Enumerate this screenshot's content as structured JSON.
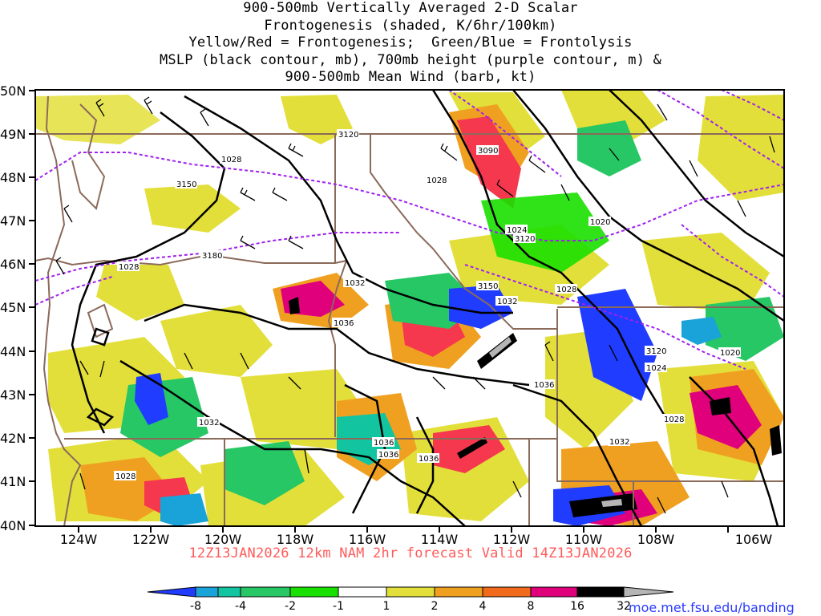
{
  "title": {
    "lines": [
      "900-500mb Vertically Averaged 2-D Scalar",
      "Frontogenesis (shaded, K/6hr/100km)",
      "Yellow/Red = Frontogenesis;  Green/Blue = Frontolysis",
      "MSLP (black contour, mb), 700mb height (purple contour, m) &",
      "900-500mb Mean Wind (barb, kt)"
    ]
  },
  "map": {
    "lat_labels": [
      "50N",
      "49N",
      "48N",
      "47N",
      "46N",
      "45N",
      "44N",
      "43N",
      "42N",
      "41N",
      "40N"
    ],
    "lon_labels": [
      "124W",
      "122W",
      "120W",
      "118W",
      "116W",
      "114W",
      "112W",
      "110W",
      "108W",
      "106W"
    ],
    "mslp_labels": [
      "1028",
      "1028",
      "1028",
      "1028",
      "1032",
      "1036",
      "1036",
      "1036",
      "1036",
      "1032",
      "1032",
      "1028",
      "1024",
      "1020",
      "1020",
      "1024",
      "1036",
      "1032",
      "1028"
    ],
    "height_labels": [
      "3120",
      "3090",
      "3150",
      "3180",
      "3150",
      "3120",
      "3120"
    ]
  },
  "valid": "12Z13JAN2026 12km NAM 2hr forecast Valid 14Z13JAN2026",
  "colorbar": {
    "labels": [
      "-8",
      "-4",
      "-2",
      "-1",
      "1",
      "2",
      "4",
      "8",
      "16",
      "32"
    ],
    "colors": [
      "#1f3cff",
      "#1aa3d8",
      "#12c4a0",
      "#26c764",
      "#19e000",
      "#ffffff",
      "#e3df3a",
      "#f0a020",
      "#f26a1c",
      "#f5384d",
      "#e0007c",
      "#000000",
      "#b5b5b5"
    ]
  },
  "credit": "moe.met.fsu.edu/banding",
  "colors": {
    "state_lines": "#8b6a5a",
    "mslp": "#000000",
    "height": "#a020f0",
    "valid_text": "#ff5a5a",
    "credit": "#2b3cff"
  }
}
